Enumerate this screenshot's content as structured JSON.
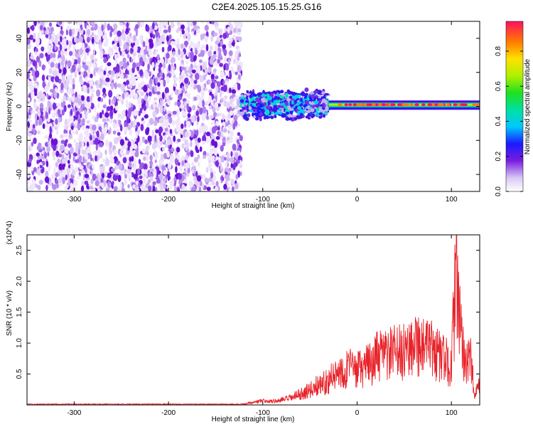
{
  "figure_title": "C2E4.2025.105.15.25.G16",
  "chart_data": [
    {
      "type": "heatmap",
      "xlabel": "Height of straight line (km)",
      "ylabel": "Frequency (Hz)",
      "xlim": [
        -350,
        130
      ],
      "ylim": [
        -50,
        50
      ],
      "x_ticks": [
        "-300",
        "-200",
        "-100",
        "0",
        "100"
      ],
      "y_ticks": [
        "-40",
        "-20",
        "0",
        "20",
        "40"
      ],
      "colorbar": {
        "label": "Normalized spectral amplitude",
        "range": [
          0,
          0.97
        ],
        "ticks": [
          "0.0",
          "0.2",
          "0.4",
          "0.6",
          "0.8"
        ]
      },
      "regions": [
        {
          "x_range": [
            -350,
            -123
          ],
          "freq_range": [
            -50,
            50
          ],
          "amplitude": "low, broadband noise"
        },
        {
          "x_range": [
            -123,
            -30
          ],
          "freq_range": [
            -10,
            10
          ],
          "amplitude": "moderate, centered near 0 Hz"
        },
        {
          "x_range": [
            -30,
            130
          ],
          "freq_range": [
            -2,
            3
          ],
          "amplitude": "high, narrow band near 1 Hz"
        }
      ],
      "grid": false
    },
    {
      "type": "line",
      "xlabel": "Height of straight line (km)",
      "ylabel": "SNR (10 * v/v)",
      "y_multiplier": "(x10^4)",
      "xlim": [
        -350,
        130
      ],
      "ylim": [
        0,
        2.75
      ],
      "x_ticks": [
        "-300",
        "-200",
        "-100",
        "0",
        "100"
      ],
      "y_ticks": [
        "0.5",
        "1.0",
        "1.5",
        "2.0",
        "2.5"
      ],
      "color": "#e8232a",
      "series": [
        {
          "x": [
            -350,
            -300,
            -250,
            -200,
            -150,
            -120,
            -110,
            -100,
            -90,
            -80,
            -70,
            -60,
            -50,
            -40,
            -30,
            -20,
            -10,
            0,
            10,
            20,
            30,
            40,
            50,
            60,
            70,
            80,
            90,
            100,
            105,
            110,
            115,
            120,
            125,
            130
          ],
          "y": [
            0.01,
            0.01,
            0.01,
            0.01,
            0.01,
            0.02,
            0.06,
            0.08,
            0.07,
            0.1,
            0.14,
            0.22,
            0.3,
            0.42,
            0.5,
            0.65,
            0.75,
            0.7,
            0.78,
            0.95,
            1.0,
            1.05,
            1.05,
            1.35,
            1.15,
            1.1,
            0.95,
            0.8,
            2.65,
            1.35,
            0.9,
            0.95,
            0.15,
            0.5
          ]
        }
      ],
      "grid": false
    }
  ]
}
